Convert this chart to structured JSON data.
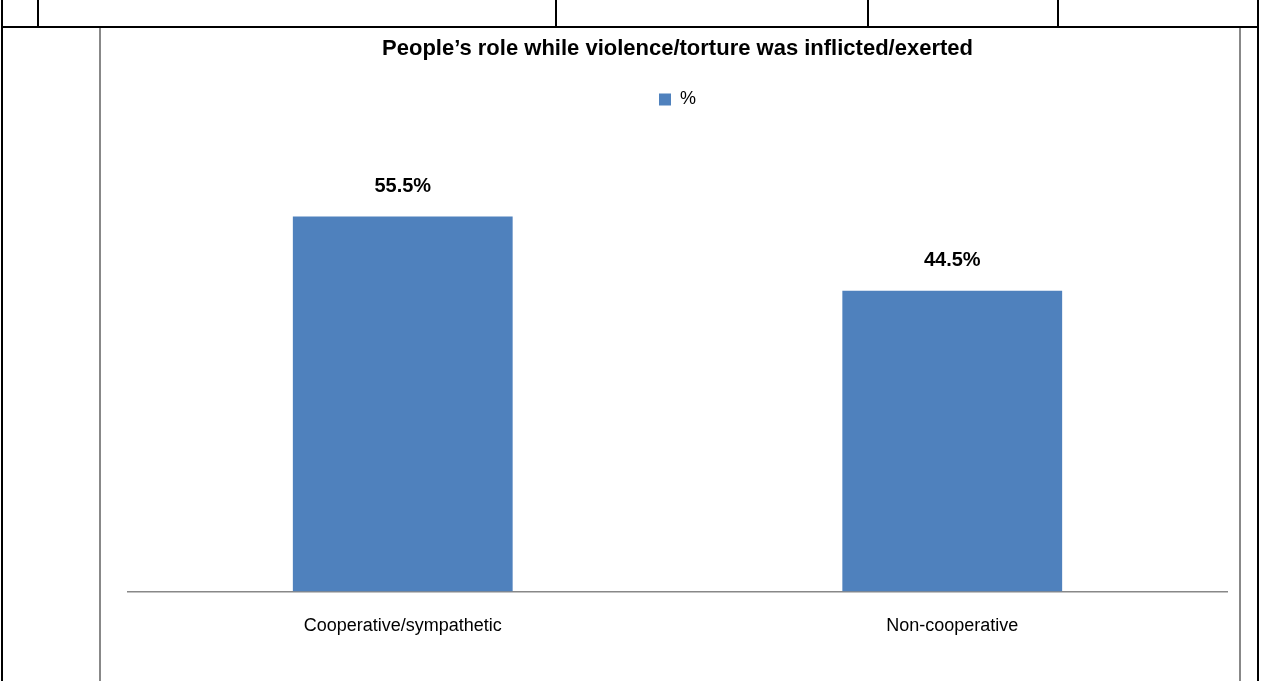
{
  "chart_data": {
    "type": "bar",
    "title": "People’s role while violence/torture was inflicted/exerted",
    "categories": [
      "Cooperative/sympathetic",
      "Non-cooperative"
    ],
    "series": [
      {
        "name": "%",
        "color": "#4f81bd",
        "values": [
          55.5,
          44.5
        ],
        "value_labels": [
          "55.5%",
          "44.5%"
        ]
      }
    ],
    "legend": "top",
    "grid": false,
    "tick_labels": "x"
  }
}
